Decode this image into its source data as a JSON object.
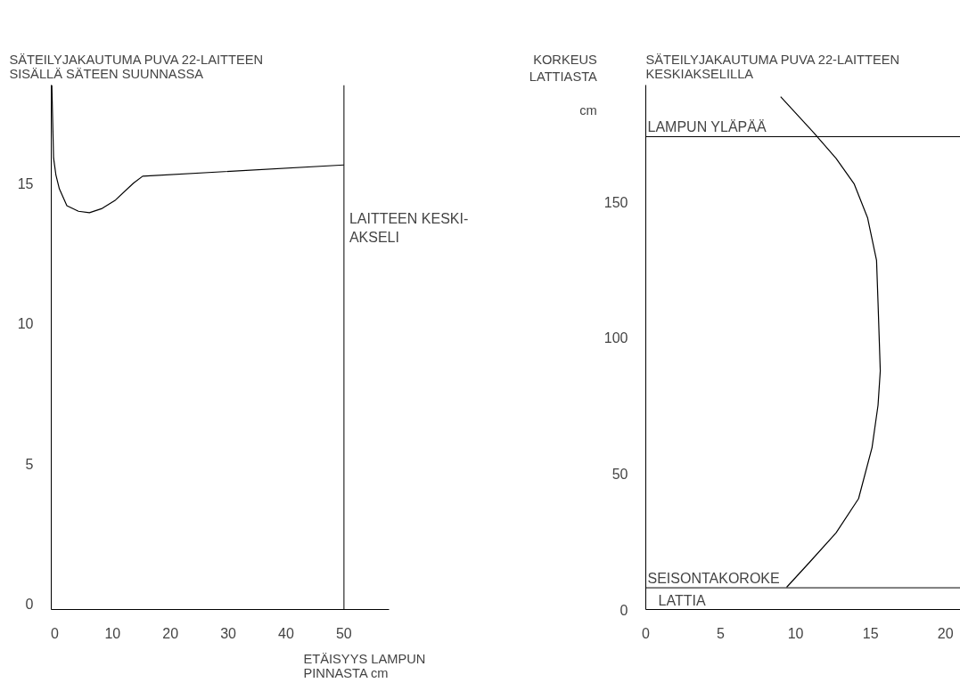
{
  "chart_data": [
    {
      "type": "line",
      "title": "SÄTEILYJAKAUTUMA PUVA 22-LAITTEEN\nSISÄLLÄ SÄTEEN SUUNNASSA",
      "xlabel": "ETÄISYYS LAMPUN\nPINNASTA cm",
      "xlim": [
        -0.6,
        57.8
      ],
      "ylim": [
        -0.2,
        18.5
      ],
      "xticks": [
        0,
        10,
        20,
        30,
        40,
        50
      ],
      "yticks": [
        0,
        5,
        10,
        15
      ],
      "grid": false,
      "series": [
        {
          "color": "#000000",
          "x": [
            -0.5,
            -0.2,
            0.2,
            0.8,
            2.1,
            4.1,
            6.0,
            8.2,
            10.5,
            13.6,
            15.2,
            50
          ],
          "values": [
            18.5,
            15.9,
            15.3,
            14.8,
            14.2,
            14.0,
            13.95,
            14.1,
            14.4,
            15.0,
            15.25,
            15.65
          ]
        }
      ],
      "ref_lines": [
        {
          "axis": "x",
          "value": 50,
          "label": "LAITTEEN KESKI-\nAKSELI",
          "color": "#000000"
        }
      ]
    },
    {
      "type": "line",
      "title": "SÄTEILYJAKAUTUMA PUVA 22-LAITTEEN\nKESKIAKSELILLA",
      "ylabel": "KORKEUS\nLATTIASTA\n\ncm",
      "xlim": [
        0,
        21
      ],
      "ylim": [
        0,
        193
      ],
      "xticks": [
        0,
        5,
        10,
        15,
        20
      ],
      "yticks": [
        0,
        50,
        100,
        150
      ],
      "grid": false,
      "series": [
        {
          "color": "#000000",
          "x": [
            9.0,
            11.2,
            12.7,
            13.9,
            14.8,
            15.4,
            15.5,
            15.65,
            15.5,
            15.1,
            14.2,
            12.7,
            10.9,
            9.4
          ],
          "values": [
            188.7,
            175.5,
            166,
            156.7,
            144.2,
            128.5,
            112.9,
            87.8,
            75.2,
            59.6,
            40.8,
            28.2,
            17.2,
            8.2
          ]
        }
      ],
      "ref_lines": [
        {
          "axis": "y",
          "value": 174,
          "label": "LAMPUN YLÄPÄÄ",
          "color": "#000000"
        },
        {
          "axis": "y",
          "value": 8,
          "label": "SEISONTAKOROKE",
          "color": "#000000"
        },
        {
          "axis": "y",
          "value": 0,
          "label": "LATTIA",
          "color": "#000000"
        }
      ]
    }
  ]
}
